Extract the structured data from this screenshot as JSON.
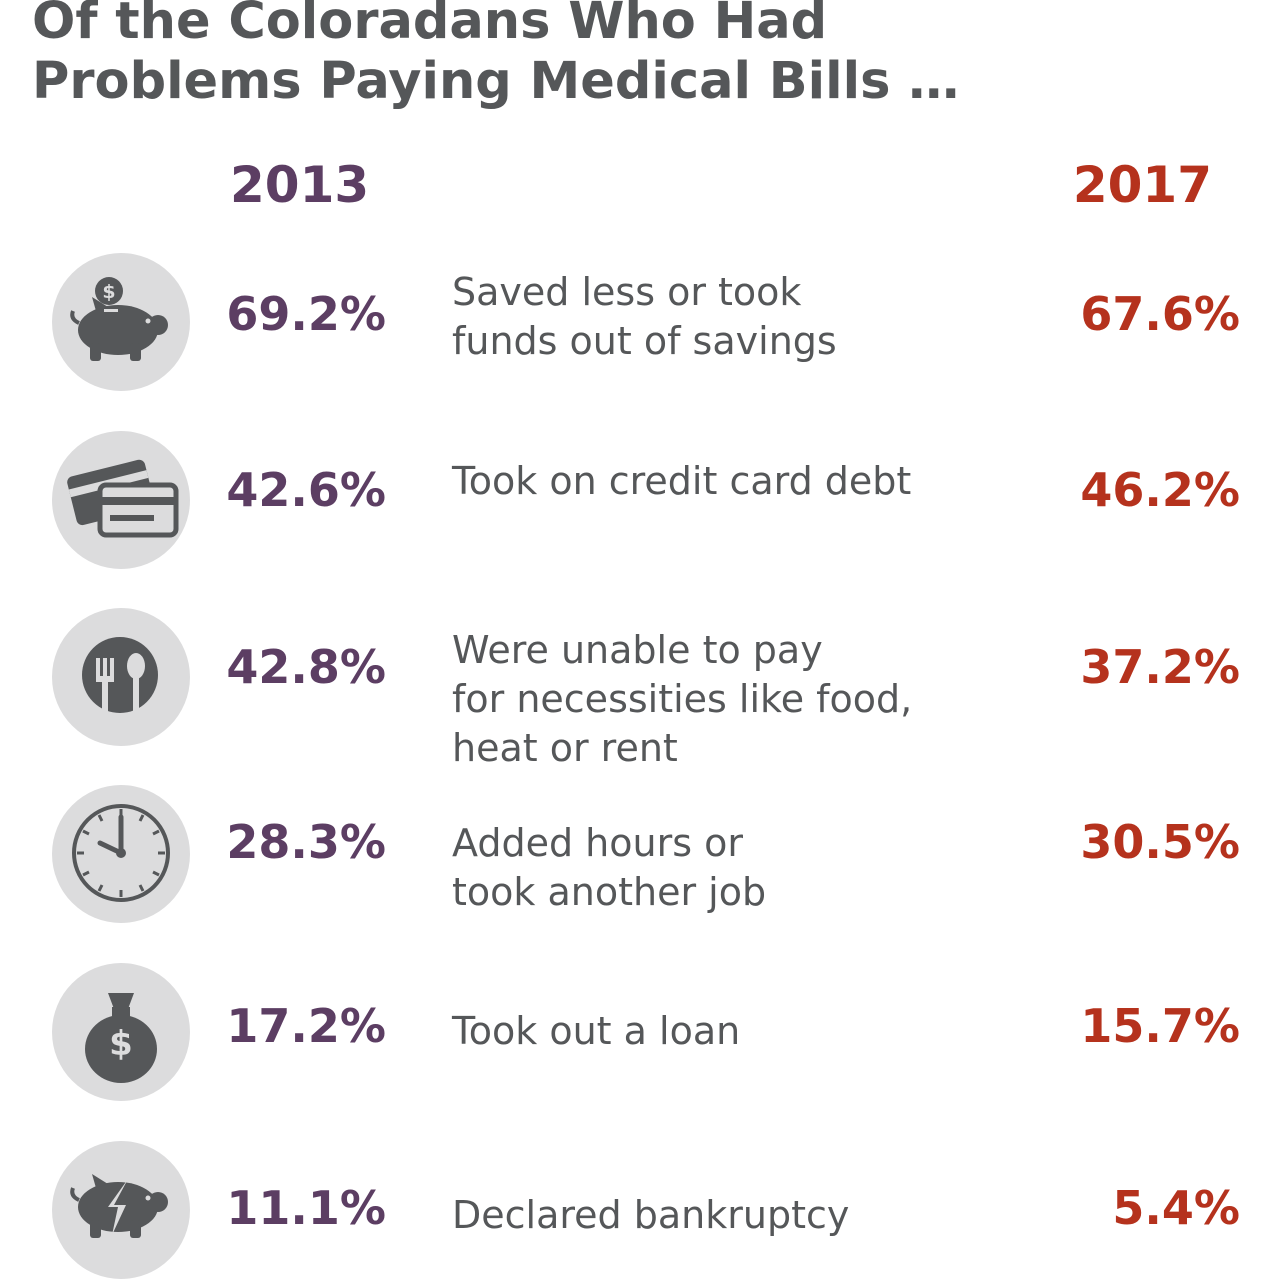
{
  "title": {
    "line1": "Of the Coloradans Who Had",
    "line2": "Problems Paying Medical Bills …"
  },
  "chart_data": {
    "type": "table",
    "columns": [
      "2013",
      "2017"
    ],
    "rows": [
      {
        "icon": "piggy-bank-icon",
        "label_lines": [
          "Saved less or took",
          "funds out of savings"
        ],
        "v2013": "69.2%",
        "v2017": "67.6%",
        "values": [
          69.2,
          67.6
        ]
      },
      {
        "icon": "credit-card-icon",
        "label_lines": [
          "Took on credit card debt"
        ],
        "v2013": "42.6%",
        "v2017": "46.2%",
        "values": [
          42.6,
          46.2
        ]
      },
      {
        "icon": "fork-spoon-icon",
        "label_lines": [
          "Were unable to pay",
          "for necessities like food,",
          "heat or rent"
        ],
        "v2013": "42.8%",
        "v2017": "37.2%",
        "values": [
          42.8,
          37.2
        ]
      },
      {
        "icon": "clock-icon",
        "label_lines": [
          "Added hours or",
          "took another job"
        ],
        "v2013": "28.3%",
        "v2017": "30.5%",
        "values": [
          28.3,
          30.5
        ]
      },
      {
        "icon": "money-bag-icon",
        "label_lines": [
          "Took out a loan"
        ],
        "v2013": "17.2%",
        "v2017": "15.7%",
        "values": [
          17.2,
          15.7
        ]
      },
      {
        "icon": "broken-piggy-bank-icon",
        "label_lines": [
          "Declared bankruptcy"
        ],
        "v2013": "11.1%",
        "v2017": "5.4%",
        "values": [
          11.1,
          5.4
        ]
      }
    ]
  },
  "colors": {
    "title": "#555759",
    "year_2013": "#5c3e63",
    "year_2017": "#b5321d",
    "icon_bg": "#dcdcdd",
    "icon_fg": "#555759"
  }
}
